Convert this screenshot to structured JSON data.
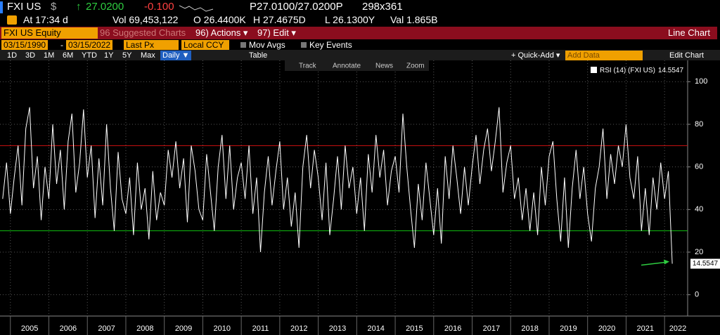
{
  "quote": {
    "ticker": "FXI US",
    "currency": "$",
    "last": "27.0200",
    "change": "-0.100",
    "bid_ask": "P27.0100/27.0200P",
    "size": "298x361"
  },
  "stats": [
    "At 17:34 d",
    "Vol 69,453,122",
    "O 26.4400K",
    "H 27.4675D",
    "L 26.1300Y",
    "Val 1.865B"
  ],
  "menu": {
    "security": "FXI US Equity",
    "items": [
      "96 Suggested Charts",
      "96) Actions ▾",
      "97) Edit ▾"
    ],
    "chart_type": "Line Chart"
  },
  "controls": {
    "start": "03/15/1990",
    "separator": "-",
    "end": "03/15/2022",
    "field": "Last Px",
    "currency": "Local CCY",
    "options": [
      "Mov Avgs",
      "Key Events"
    ]
  },
  "periods": [
    "1D",
    "3D",
    "1M",
    "6M",
    "YTD",
    "1Y",
    "5Y",
    "Max"
  ],
  "frequency": "Daily ▼",
  "table": "Table",
  "quick_add": "+ Quick-Add ▾",
  "add_data": "Add Data",
  "edit_chart": "Edit Chart",
  "tools": [
    "Track",
    "Annotate",
    "News",
    "Zoom"
  ],
  "chart_data": {
    "type": "line",
    "x": [
      2004.8,
      2004.9,
      2005.0,
      2005.1,
      2005.2,
      2005.3,
      2005.4,
      2005.5,
      2005.6,
      2005.7,
      2005.8,
      2005.9,
      2006.0,
      2006.1,
      2006.2,
      2006.3,
      2006.4,
      2006.5,
      2006.6,
      2006.7,
      2006.8,
      2006.9,
      2007.0,
      2007.1,
      2007.2,
      2007.3,
      2007.4,
      2007.5,
      2007.6,
      2007.7,
      2007.8,
      2007.9,
      2008.0,
      2008.1,
      2008.2,
      2008.3,
      2008.4,
      2008.5,
      2008.6,
      2008.7,
      2008.8,
      2008.9,
      2009.0,
      2009.1,
      2009.2,
      2009.3,
      2009.4,
      2009.5,
      2009.6,
      2009.7,
      2009.8,
      2009.9,
      2010.0,
      2010.1,
      2010.2,
      2010.3,
      2010.4,
      2010.5,
      2010.6,
      2010.7,
      2010.8,
      2010.9,
      2011.0,
      2011.1,
      2011.2,
      2011.3,
      2011.4,
      2011.5,
      2011.6,
      2011.7,
      2011.8,
      2011.9,
      2012.0,
      2012.1,
      2012.2,
      2012.3,
      2012.4,
      2012.5,
      2012.6,
      2012.7,
      2012.8,
      2012.9,
      2013.0,
      2013.1,
      2013.2,
      2013.3,
      2013.4,
      2013.5,
      2013.6,
      2013.7,
      2013.8,
      2013.9,
      2014.0,
      2014.1,
      2014.2,
      2014.3,
      2014.4,
      2014.5,
      2014.6,
      2014.7,
      2014.8,
      2014.9,
      2015.0,
      2015.1,
      2015.2,
      2015.3,
      2015.4,
      2015.5,
      2015.6,
      2015.7,
      2015.8,
      2015.9,
      2016.0,
      2016.1,
      2016.2,
      2016.3,
      2016.4,
      2016.5,
      2016.6,
      2016.7,
      2016.8,
      2016.9,
      2017.0,
      2017.1,
      2017.2,
      2017.3,
      2017.4,
      2017.5,
      2017.6,
      2017.7,
      2017.8,
      2017.9,
      2018.0,
      2018.1,
      2018.2,
      2018.3,
      2018.4,
      2018.5,
      2018.6,
      2018.7,
      2018.8,
      2018.9,
      2019.0,
      2019.1,
      2019.2,
      2019.3,
      2019.4,
      2019.5,
      2019.6,
      2019.7,
      2019.8,
      2019.9,
      2020.0,
      2020.1,
      2020.2,
      2020.3,
      2020.4,
      2020.5,
      2020.6,
      2020.7,
      2020.8,
      2020.9,
      2021.0,
      2021.1,
      2021.2,
      2021.3,
      2021.4,
      2021.5,
      2021.6,
      2021.7,
      2021.8,
      2021.9,
      2022.0,
      2022.1,
      2022.2
    ],
    "series": [
      {
        "name": "RSI (14) (FXI US)",
        "color": "#ffffff",
        "values": [
          45,
          62,
          38,
          55,
          70,
          42,
          78,
          88,
          50,
          65,
          35,
          60,
          45,
          80,
          52,
          68,
          40,
          72,
          85,
          48,
          62,
          87,
          55,
          70,
          36,
          64,
          42,
          80,
          50,
          30,
          67,
          45,
          38,
          55,
          28,
          62,
          40,
          50,
          26,
          58,
          35,
          48,
          42,
          68,
          55,
          72,
          50,
          64,
          34,
          70,
          58,
          40,
          35,
          66,
          48,
          30,
          60,
          75,
          45,
          70,
          40,
          55,
          62,
          45,
          70,
          38,
          55,
          20,
          48,
          65,
          42,
          58,
          72,
          40,
          55,
          32,
          48,
          22,
          60,
          75,
          50,
          68,
          55,
          35,
          62,
          28,
          45,
          65,
          40,
          70,
          50,
          60,
          38,
          55,
          30,
          66,
          48,
          75,
          55,
          68,
          42,
          58,
          65,
          48,
          85,
          60,
          40,
          22,
          52,
          35,
          62,
          45,
          28,
          50,
          24,
          65,
          45,
          70,
          55,
          38,
          60,
          42,
          60,
          75,
          52,
          68,
          78,
          58,
          72,
          88,
          48,
          62,
          70,
          45,
          55,
          35,
          50,
          30,
          48,
          28,
          60,
          42,
          65,
          72,
          45,
          25,
          55,
          22,
          50,
          68,
          45,
          60,
          38,
          25,
          50,
          60,
          78,
          45,
          66,
          52,
          70,
          60,
          80,
          55,
          45,
          65,
          30,
          50,
          28,
          55,
          40,
          62,
          45,
          58,
          14.5547
        ]
      }
    ],
    "xlim": [
      2004.73,
      2022.6
    ],
    "xticks": [
      2005,
      2006,
      2007,
      2008,
      2009,
      2010,
      2011,
      2012,
      2013,
      2014,
      2015,
      2016,
      2017,
      2018,
      2019,
      2020,
      2021,
      2022
    ],
    "ylim": [
      -10,
      110
    ],
    "yticks": [
      0,
      20,
      40,
      60,
      80,
      100
    ],
    "reference_lines": [
      {
        "value": 70,
        "color": "#d01010"
      },
      {
        "value": 30,
        "color": "#10c010"
      }
    ],
    "grid": true
  }
}
